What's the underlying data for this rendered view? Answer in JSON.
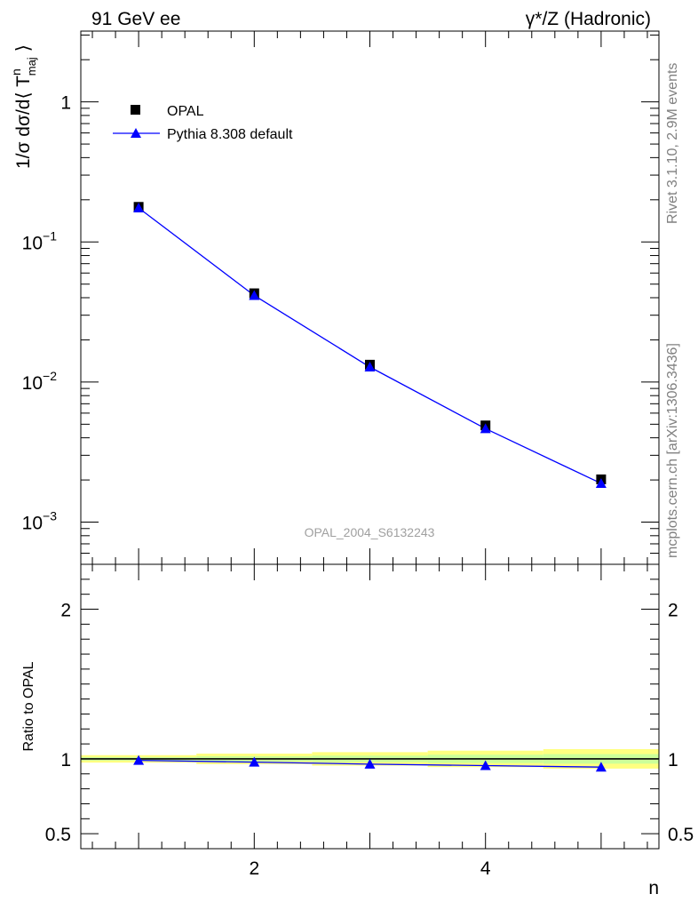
{
  "header": {
    "left": "91 GeV ee",
    "right": "γ*/Z (Hadronic)"
  },
  "side_labels": {
    "rivet": "Rivet 3.1.10,  2.9M events",
    "source": "mcplots.cern.ch [arXiv:1306.3436]"
  },
  "watermark": "OPAL_2004_S6132243",
  "legend": {
    "data_label": "OPAL",
    "mc_label": "Pythia 8.308 default"
  },
  "colors": {
    "data": "#000000",
    "mc": "#0000ff",
    "band_outer": "#ffff80",
    "band_inner": "#ccff99"
  },
  "chart_data": [
    {
      "type": "line",
      "panel": "main",
      "ylabel": "1/σ dσ/d⟨ T",
      "ylabel_sup": "n",
      "ylabel_sub": "maj",
      "ylabel_close": "⟩",
      "yscale": "log",
      "xlim": [
        0.5,
        5.5
      ],
      "ylim": [
        0.0005,
        3.2
      ],
      "y_ticks": [
        {
          "value": 1,
          "label": "1"
        },
        {
          "value": 0.1,
          "label": "10",
          "exp": "−1"
        },
        {
          "value": 0.01,
          "label": "10",
          "exp": "−2"
        },
        {
          "value": 0.001,
          "label": "10",
          "exp": "−3"
        }
      ],
      "x": [
        1,
        2,
        3,
        4,
        5
      ],
      "series": [
        {
          "name": "OPAL",
          "marker": "square",
          "values": [
            0.178,
            0.043,
            0.0133,
            0.0049,
            0.00202
          ]
        },
        {
          "name": "Pythia 8.308 default",
          "marker": "triangle",
          "values": [
            0.175,
            0.0415,
            0.0128,
            0.00465,
            0.00189
          ]
        }
      ]
    },
    {
      "type": "line",
      "panel": "ratio",
      "xlabel": "n",
      "ylabel": "Ratio to OPAL",
      "xlim": [
        0.5,
        5.5
      ],
      "ylim": [
        0.4,
        2.3
      ],
      "x_ticks": [
        {
          "value": 2,
          "label": "2"
        },
        {
          "value": 4,
          "label": "4"
        }
      ],
      "y_ticks": [
        {
          "value": 0.5,
          "label": "0.5"
        },
        {
          "value": 1,
          "label": "1"
        },
        {
          "value": 2,
          "label": "2"
        }
      ],
      "x": [
        1,
        2,
        3,
        4,
        5
      ],
      "series": [
        {
          "name": "Pythia 8.308 default",
          "marker": "triangle",
          "values": [
            0.99,
            0.978,
            0.965,
            0.955,
            0.945
          ]
        }
      ],
      "band": {
        "bin_edges": [
          0.5,
          1.5,
          2.5,
          3.5,
          4.5,
          5.5
        ],
        "outer": [
          0.025,
          0.035,
          0.045,
          0.055,
          0.065
        ],
        "inner": [
          0.012,
          0.018,
          0.022,
          0.028,
          0.032
        ]
      }
    }
  ]
}
